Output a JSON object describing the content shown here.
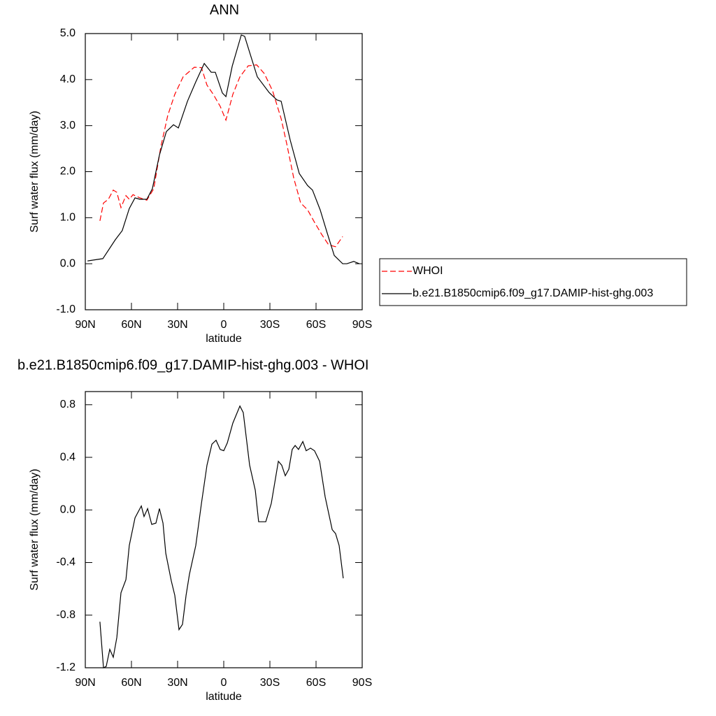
{
  "chart_data": [
    {
      "type": "line",
      "title": "ANN",
      "xlabel": "latitude",
      "ylabel": "Surf water flux (mm/day)",
      "xlim": [
        90,
        -90
      ],
      "xticks": [
        {
          "value": 90,
          "label": "90N"
        },
        {
          "value": 60,
          "label": "60N"
        },
        {
          "value": 30,
          "label": "30N"
        },
        0,
        {
          "value": -30,
          "label": "30S"
        },
        {
          "value": -60,
          "label": "60S"
        },
        {
          "value": -90,
          "label": "90S"
        }
      ],
      "ylim": [
        -1,
        5
      ],
      "yticks": [
        {
          "value": -1,
          "label": "-1.0"
        },
        {
          "value": 0,
          "label": "0.0"
        },
        {
          "value": 1,
          "label": "1.0"
        },
        {
          "value": 2,
          "label": "2.0"
        },
        {
          "value": 3,
          "label": "3.0"
        },
        {
          "value": 4,
          "label": "4.0"
        },
        {
          "value": 5,
          "label": "5.0"
        }
      ],
      "legend": "right",
      "series": [
        {
          "name": "WHOI",
          "color": "#ff0000",
          "dashed": true,
          "x": [
            80.5,
            78.2,
            75,
            71.8,
            69.5,
            66.8,
            63.6,
            61.4,
            59,
            54.5,
            50,
            45.5,
            40.9,
            36.4,
            31.8,
            26.4,
            19.1,
            14.5,
            10.9,
            6.8,
            2.3,
            -1.4,
            -5.9,
            -10.5,
            -15.9,
            -21.4,
            -26.4,
            -31.8,
            -37.3,
            -40.9,
            -45.5,
            -50,
            -54.5,
            -59,
            -63.6,
            -68.2,
            -72.7,
            -77.3
          ],
          "values": [
            0.93,
            1.32,
            1.4,
            1.6,
            1.55,
            1.22,
            1.48,
            1.4,
            1.5,
            1.43,
            1.38,
            1.63,
            2.54,
            3.22,
            3.68,
            4.06,
            4.27,
            4.26,
            3.88,
            3.68,
            3.42,
            3.12,
            3.68,
            4.06,
            4.3,
            4.32,
            4.13,
            3.75,
            3.15,
            2.61,
            1.86,
            1.32,
            1.17,
            0.9,
            0.64,
            0.41,
            0.37,
            0.59
          ]
        },
        {
          "name": "b.e21.B1850cmip6.f09_g17.DAMIP-hist-ghg.003",
          "color": "#000000",
          "dashed": false,
          "x": [
            88.6,
            78.6,
            70.5,
            66,
            61.4,
            57.7,
            54.5,
            50,
            46.4,
            41.8,
            37.3,
            32.7,
            29.5,
            23.6,
            18.2,
            12.7,
            8.2,
            5.5,
            0.9,
            -1.4,
            -5.5,
            -11.4,
            -13.6,
            -17.3,
            -21.8,
            -29.5,
            -34.5,
            -37.3,
            -43.2,
            -49.1,
            -54.5,
            -57.7,
            -62.7,
            -67.3,
            -71.8,
            -77.3,
            -80,
            -84.5,
            -88.2
          ],
          "values": [
            0.06,
            0.11,
            0.52,
            0.72,
            1.2,
            1.43,
            1.4,
            1.4,
            1.63,
            2.36,
            2.87,
            3.02,
            2.95,
            3.53,
            3.95,
            4.35,
            4.16,
            4.16,
            3.71,
            3.63,
            4.29,
            4.97,
            4.94,
            4.54,
            4.06,
            3.72,
            3.56,
            3.53,
            2.69,
            1.96,
            1.7,
            1.6,
            1.17,
            0.66,
            0.18,
            0.0,
            0.0,
            0.05,
            0.0
          ]
        }
      ]
    },
    {
      "type": "line",
      "title": "b.e21.B1850cmip6.f09_g17.DAMIP-hist-ghg.003 - WHOI",
      "xlabel": "latitude",
      "ylabel": "Surf water flux (mm/day)",
      "xlim": [
        90,
        -90
      ],
      "xticks": [
        {
          "value": 90,
          "label": "90N"
        },
        {
          "value": 60,
          "label": "60N"
        },
        {
          "value": 30,
          "label": "30N"
        },
        0,
        {
          "value": -30,
          "label": "30S"
        },
        {
          "value": -60,
          "label": "60S"
        },
        {
          "value": -90,
          "label": "90S"
        }
      ],
      "ylim": [
        -1.2,
        0.9
      ],
      "yticks": [
        -1.2,
        -0.8,
        -0.4,
        {
          "value": 0,
          "label": "0.0"
        },
        0.4,
        0.8
      ],
      "series": [
        {
          "color": "#000000",
          "dashed": false,
          "x": [
            80.5,
            78.2,
            76.4,
            74.1,
            71.8,
            69.5,
            66.8,
            63.6,
            61.4,
            57.7,
            53.6,
            51.8,
            49.5,
            46.8,
            44.1,
            41.8,
            39.5,
            37.7,
            34.1,
            31.8,
            29.1,
            26.8,
            24.5,
            22.3,
            18.2,
            14.5,
            10.9,
            7.7,
            5,
            2.3,
            0,
            -2.3,
            -5.9,
            -10.5,
            -12.7,
            -16.8,
            -20.5,
            -22.7,
            -27.3,
            -30.9,
            -35.5,
            -37.7,
            -40,
            -42.3,
            -44.5,
            -46.4,
            -48.6,
            -51.4,
            -53.6,
            -56.4,
            -59,
            -62.3,
            -65.9,
            -70.5,
            -72.7,
            -75,
            -77.7
          ],
          "values": [
            -0.85,
            -1.2,
            -1.19,
            -1.06,
            -1.12,
            -0.97,
            -0.63,
            -0.53,
            -0.27,
            -0.06,
            0.03,
            -0.05,
            0.01,
            -0.11,
            -0.1,
            0.01,
            -0.1,
            -0.33,
            -0.54,
            -0.65,
            -0.91,
            -0.87,
            -0.65,
            -0.49,
            -0.27,
            0.05,
            0.34,
            0.5,
            0.53,
            0.46,
            0.45,
            0.51,
            0.66,
            0.79,
            0.74,
            0.34,
            0.15,
            -0.09,
            -0.09,
            0.05,
            0.37,
            0.34,
            0.26,
            0.31,
            0.46,
            0.49,
            0.46,
            0.52,
            0.45,
            0.47,
            0.45,
            0.37,
            0.1,
            -0.15,
            -0.18,
            -0.27,
            -0.52
          ]
        }
      ]
    }
  ]
}
